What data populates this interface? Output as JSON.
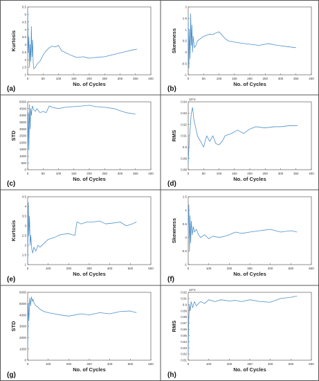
{
  "chart_data": [
    {
      "type": "line",
      "panel_label": "(a)",
      "xlabel": "No. of Cycles",
      "ylabel": "Kurtosis",
      "xlim": [
        0,
        400
      ],
      "ylim": [
        1,
        5.5
      ],
      "xticks": [
        0,
        50,
        100,
        150,
        200,
        250,
        300,
        350,
        400
      ],
      "yticks": [
        1,
        1.5,
        2,
        2.5,
        3,
        3.5,
        4,
        4.5,
        5,
        5.5
      ],
      "y_exponent": "",
      "line_color": "#4c8fca",
      "x": [
        0,
        2,
        4,
        6,
        8,
        10,
        12,
        14,
        16,
        18,
        20,
        25,
        30,
        40,
        50,
        60,
        70,
        80,
        90,
        100,
        110,
        120,
        140,
        160,
        180,
        200,
        220,
        250,
        280,
        300,
        320,
        340,
        355
      ],
      "y": [
        5.2,
        2.5,
        3.5,
        1.5,
        3.0,
        1.9,
        4.2,
        2.2,
        3.3,
        1.8,
        1.4,
        1.5,
        1.7,
        1.9,
        2.3,
        2.6,
        2.8,
        2.9,
        2.85,
        2.95,
        2.6,
        2.5,
        2.3,
        2.15,
        2.2,
        2.1,
        2.15,
        2.2,
        2.35,
        2.45,
        2.55,
        2.65,
        2.7
      ]
    },
    {
      "type": "line",
      "panel_label": "(b)",
      "xlabel": "No. of Cycles",
      "ylabel": "Skewness",
      "xlim": [
        0,
        400
      ],
      "ylim": [
        -1,
        2
      ],
      "xticks": [
        0,
        50,
        100,
        150,
        200,
        250,
        300,
        350,
        400
      ],
      "yticks": [
        -1,
        -0.5,
        0,
        0.5,
        1,
        1.5,
        2
      ],
      "y_exponent": "",
      "line_color": "#4c8fca",
      "x": [
        0,
        2,
        4,
        6,
        8,
        10,
        12,
        14,
        16,
        20,
        25,
        30,
        40,
        50,
        60,
        70,
        80,
        90,
        100,
        110,
        120,
        130,
        150,
        170,
        200,
        230,
        260,
        290,
        320,
        350
      ],
      "y": [
        1.5,
        -0.7,
        1.0,
        -0.3,
        1.7,
        0.3,
        1.2,
        0.0,
        0.7,
        0.2,
        0.3,
        0.5,
        0.6,
        0.7,
        0.75,
        0.8,
        0.78,
        0.85,
        0.9,
        0.75,
        0.6,
        0.5,
        0.45,
        0.4,
        0.35,
        0.3,
        0.38,
        0.3,
        0.25,
        0.2
      ]
    },
    {
      "type": "line",
      "panel_label": "(c)",
      "xlabel": "No. of Cycles",
      "ylabel": "STD",
      "xlim": [
        0,
        400
      ],
      "ylim": [
        0,
        5000
      ],
      "xticks": [
        0,
        50,
        100,
        150,
        200,
        250,
        300,
        350,
        400
      ],
      "yticks": [
        0,
        500,
        1000,
        1500,
        2000,
        2500,
        3000,
        3500,
        4000,
        4500,
        5000
      ],
      "y_exponent": "",
      "line_color": "#4c8fca",
      "x": [
        0,
        2,
        4,
        6,
        8,
        10,
        12,
        15,
        20,
        25,
        30,
        40,
        50,
        60,
        70,
        80,
        100,
        120,
        150,
        180,
        200,
        220,
        250,
        280,
        300,
        320,
        350
      ],
      "y": [
        500,
        4200,
        1500,
        4800,
        3000,
        4500,
        4000,
        4700,
        4400,
        4300,
        4500,
        4200,
        4300,
        4200,
        4700,
        4600,
        4500,
        4600,
        4650,
        4700,
        4750,
        4650,
        4600,
        4500,
        4350,
        4200,
        4100
      ]
    },
    {
      "type": "line",
      "panel_label": "(d)",
      "xlabel": "No. of Cycles",
      "ylabel": "RMS",
      "xlim": [
        0,
        400
      ],
      "ylim": [
        0.88,
        0.94
      ],
      "xticks": [
        0,
        50,
        100,
        150,
        200,
        250,
        300,
        350,
        400
      ],
      "yticks": [
        0.88,
        0.89,
        0.9,
        0.91,
        0.92,
        0.93,
        0.94
      ],
      "y_exponent": "10^4",
      "line_color": "#4c8fca",
      "x": [
        0,
        3,
        6,
        10,
        14,
        18,
        22,
        26,
        30,
        40,
        50,
        60,
        70,
        80,
        90,
        100,
        110,
        120,
        140,
        160,
        180,
        200,
        220,
        250,
        280,
        300,
        330,
        355
      ],
      "y": [
        0.885,
        0.905,
        0.915,
        0.93,
        0.935,
        0.925,
        0.92,
        0.915,
        0.91,
        0.905,
        0.9,
        0.91,
        0.905,
        0.91,
        0.903,
        0.902,
        0.905,
        0.91,
        0.912,
        0.915,
        0.912,
        0.916,
        0.918,
        0.917,
        0.918,
        0.918,
        0.919,
        0.919
      ]
    },
    {
      "type": "line",
      "panel_label": "(e)",
      "xlabel": "No. of Cycles",
      "ylabel": "Kurtosis",
      "xlim": [
        0,
        600
      ],
      "ylim": [
        1,
        4.5
      ],
      "xticks": [
        0,
        100,
        200,
        300,
        400,
        500,
        600
      ],
      "yticks": [
        1,
        1.5,
        2,
        2.5,
        3,
        3.5,
        4,
        4.5
      ],
      "y_exponent": "",
      "line_color": "#4c8fca",
      "x": [
        0,
        3,
        6,
        9,
        12,
        15,
        20,
        25,
        30,
        40,
        50,
        60,
        80,
        100,
        130,
        160,
        200,
        230,
        240,
        260,
        290,
        320,
        350,
        380,
        420,
        450,
        480,
        510,
        530
      ],
      "y": [
        1.0,
        4.2,
        2.5,
        3.5,
        2.0,
        2.5,
        1.8,
        1.6,
        1.9,
        1.7,
        2.0,
        1.9,
        2.1,
        2.3,
        2.4,
        2.55,
        2.6,
        2.5,
        3.2,
        3.1,
        3.2,
        3.2,
        3.25,
        3.1,
        3.15,
        3.2,
        3.0,
        3.1,
        3.2
      ]
    },
    {
      "type": "line",
      "panel_label": "(f)",
      "xlabel": "No. of Cycles",
      "ylabel": "Skewness",
      "xlim": [
        0,
        600
      ],
      "ylim": [
        -1,
        1.5
      ],
      "xticks": [
        0,
        100,
        200,
        300,
        400,
        500,
        600
      ],
      "yticks": [
        -1,
        -0.5,
        0,
        0.5,
        1,
        1.5
      ],
      "y_exponent": "",
      "line_color": "#4c8fca",
      "x": [
        0,
        3,
        6,
        9,
        12,
        15,
        20,
        25,
        30,
        40,
        50,
        60,
        80,
        100,
        120,
        150,
        180,
        200,
        230,
        260,
        300,
        350,
        400,
        450,
        500,
        530
      ],
      "y": [
        0.3,
        1.2,
        -0.5,
        0.8,
        -0.2,
        0.6,
        0.1,
        0.4,
        0.2,
        0.3,
        0.1,
        0.0,
        0.1,
        -0.05,
        0.05,
        0.0,
        0.05,
        0.1,
        0.2,
        0.15,
        0.2,
        0.25,
        0.3,
        0.2,
        0.25,
        0.2
      ]
    },
    {
      "type": "line",
      "panel_label": "(g)",
      "xlabel": "No. of Cycles",
      "ylabel": "STD",
      "xlim": [
        0,
        600
      ],
      "ylim": [
        0,
        6000
      ],
      "xticks": [
        0,
        100,
        200,
        300,
        400,
        500,
        600
      ],
      "yticks": [
        0,
        1000,
        2000,
        3000,
        4000,
        5000,
        6000
      ],
      "y_exponent": "",
      "line_color": "#4c8fca",
      "x": [
        0,
        3,
        6,
        10,
        14,
        18,
        22,
        26,
        30,
        40,
        50,
        60,
        80,
        100,
        130,
        160,
        200,
        230,
        260,
        300,
        350,
        400,
        450,
        500,
        530
      ],
      "y": [
        1000,
        5000,
        3500,
        5500,
        4800,
        5600,
        5200,
        5400,
        5100,
        4800,
        4700,
        4500,
        4300,
        4200,
        4100,
        4000,
        3900,
        4000,
        4100,
        4000,
        4200,
        4100,
        4300,
        4350,
        4200
      ]
    },
    {
      "type": "line",
      "panel_label": "(h)",
      "xlabel": "No. of Cycles",
      "ylabel": "RMS",
      "xlim": [
        0,
        600
      ],
      "ylim": [
        0.81,
        0.92
      ],
      "xticks": [
        0,
        100,
        200,
        300,
        400,
        500,
        600
      ],
      "yticks": [
        0.81,
        0.82,
        0.83,
        0.84,
        0.85,
        0.86,
        0.87,
        0.88,
        0.89,
        0.9,
        0.91,
        0.92
      ],
      "y_exponent": "10^4",
      "line_color": "#4c8fca",
      "x": [
        0,
        3,
        6,
        10,
        14,
        18,
        22,
        26,
        30,
        40,
        50,
        60,
        80,
        100,
        130,
        160,
        200,
        230,
        260,
        300,
        350,
        400,
        450,
        500,
        530
      ],
      "y": [
        0.82,
        0.88,
        0.9,
        0.89,
        0.905,
        0.9,
        0.895,
        0.9,
        0.905,
        0.898,
        0.902,
        0.905,
        0.902,
        0.908,
        0.905,
        0.908,
        0.906,
        0.907,
        0.905,
        0.908,
        0.905,
        0.904,
        0.91,
        0.912,
        0.914
      ]
    }
  ]
}
